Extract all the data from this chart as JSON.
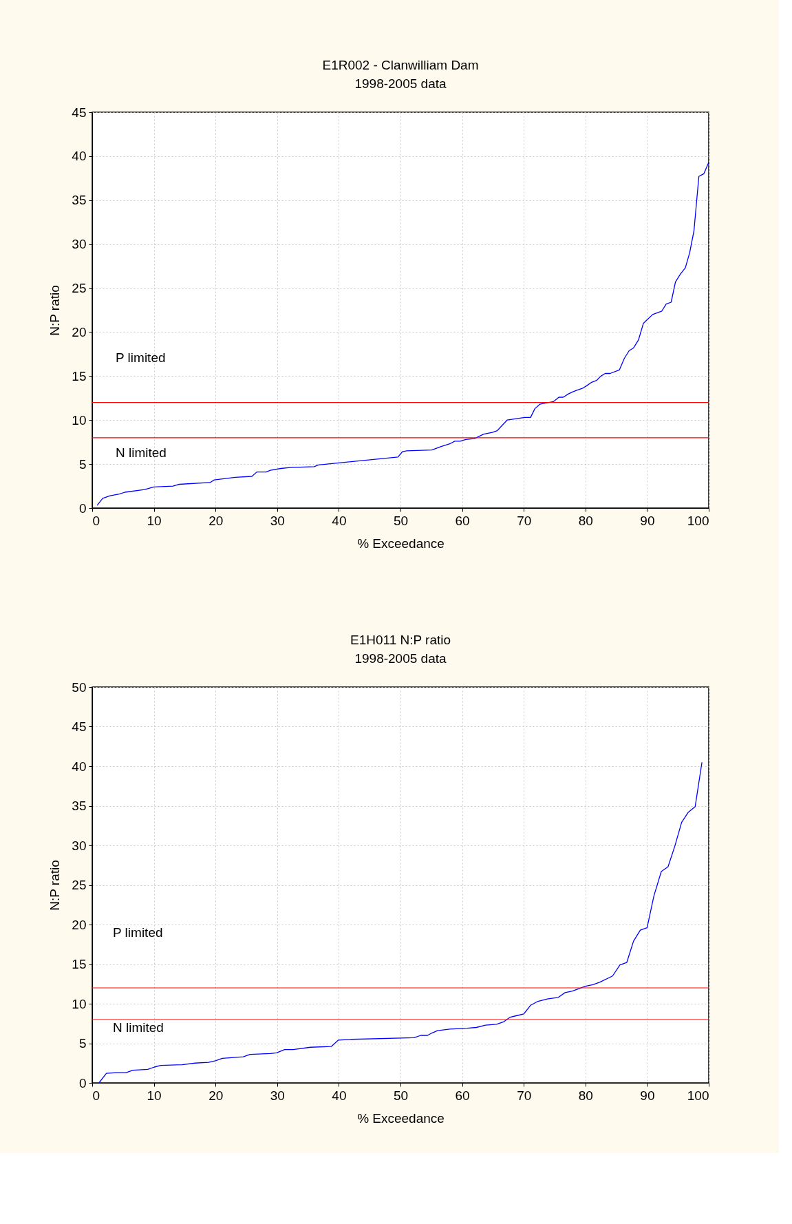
{
  "chart_data": [
    {
      "type": "line",
      "title": "E1R002 - Clanwilliam Dam",
      "subtitle": "1998-2005 data",
      "xlabel": "% Exceedance",
      "ylabel": "N:P ratio",
      "annotations": [
        "P limited",
        "N limited"
      ],
      "series": [
        {
          "color": "#0000ff",
          "x": [
            0.8,
            1.7,
            2.9,
            4.4,
            5.3,
            8.5,
            10.0,
            13.1,
            14.1,
            19.1,
            19.8,
            23.2,
            25.9,
            26.7,
            28.2,
            28.9,
            30.6,
            32.1,
            36.0,
            36.7,
            49.6,
            50.3,
            51.0,
            55.1,
            56.6,
            58.0,
            58.8,
            59.7,
            60.6,
            62.0,
            63.5,
            64.2,
            64.9,
            65.7,
            67.3,
            69.2,
            70.2,
            71.1,
            71.8,
            72.6,
            74.8,
            75.7,
            76.4,
            77.3,
            77.9,
            78.6,
            79.5,
            80.2,
            81.0,
            81.8,
            82.5,
            83.2,
            84.0,
            85.5,
            86.3,
            87.1,
            87.8,
            88.6,
            89.4,
            90.0,
            90.9,
            92.4,
            93.1,
            93.9,
            94.6,
            95.4,
            96.2,
            96.9,
            97.6,
            98.4,
            99.2,
            100.0
          ],
          "values": [
            0.3,
            1.1,
            1.4,
            1.6,
            1.8,
            2.1,
            2.4,
            2.5,
            2.7,
            2.9,
            3.2,
            3.5,
            3.6,
            4.1,
            4.1,
            4.3,
            4.5,
            4.6,
            4.7,
            4.9,
            5.8,
            6.4,
            6.5,
            6.6,
            7.0,
            7.3,
            7.6,
            7.6,
            7.8,
            7.9,
            8.4,
            8.5,
            8.6,
            8.8,
            10.0,
            10.2,
            10.3,
            10.3,
            11.3,
            11.8,
            12.1,
            12.6,
            12.6,
            13.0,
            13.2,
            13.4,
            13.6,
            13.9,
            14.3,
            14.5,
            15.0,
            15.3,
            15.3,
            15.7,
            17.0,
            17.9,
            18.2,
            19.1,
            21.0,
            21.4,
            22.0,
            22.4,
            23.2,
            23.4,
            25.7,
            26.6,
            27.3,
            29.0,
            31.5,
            37.7,
            38.0,
            39.3
          ]
        }
      ],
      "xlim": [
        0,
        100
      ],
      "xticks": [
        0,
        10,
        20,
        30,
        40,
        50,
        60,
        70,
        80,
        90,
        100
      ],
      "ylim": [
        0,
        45
      ],
      "yticks": [
        0,
        5,
        10,
        15,
        20,
        25,
        30,
        35,
        40,
        45
      ],
      "ref_lines": [
        {
          "axis": "y",
          "value": 12,
          "color": "#ff0000"
        },
        {
          "axis": "y",
          "value": 8,
          "color": "#ff0000"
        }
      ],
      "grid": true
    },
    {
      "type": "line",
      "title": "E1H011 N:P ratio",
      "subtitle": "1998-2005 data",
      "xlabel": "% Exceedance",
      "ylabel": "N:P ratio",
      "annotations": [
        "P limited",
        "N limited"
      ],
      "series": [
        {
          "color": "#0000ff",
          "x": [
            1.1,
            2.3,
            4.0,
            5.5,
            6.6,
            9.0,
            10.1,
            11.1,
            14.6,
            16.7,
            18.9,
            20.0,
            21.1,
            24.5,
            25.6,
            28.9,
            29.9,
            31.2,
            32.6,
            35.4,
            38.8,
            39.9,
            42.1,
            52.2,
            53.3,
            54.4,
            55.1,
            56.0,
            58.0,
            60.8,
            62.3,
            63.8,
            65.6,
            66.7,
            67.8,
            68.9,
            70.0,
            71.1,
            72.3,
            73.8,
            75.6,
            76.7,
            77.9,
            80.0,
            81.2,
            82.3,
            84.4,
            85.6,
            86.7,
            87.8,
            88.9,
            90.0,
            91.1,
            92.3,
            93.4,
            94.5,
            95.6,
            96.7,
            97.8,
            98.9
          ],
          "values": [
            0.0,
            1.2,
            1.3,
            1.3,
            1.6,
            1.7,
            2.0,
            2.2,
            2.3,
            2.5,
            2.6,
            2.8,
            3.1,
            3.3,
            3.6,
            3.7,
            3.8,
            4.2,
            4.2,
            4.5,
            4.6,
            5.4,
            5.5,
            5.7,
            6.0,
            6.0,
            6.3,
            6.6,
            6.8,
            6.9,
            7.0,
            7.3,
            7.4,
            7.7,
            8.3,
            8.5,
            8.7,
            9.8,
            10.3,
            10.6,
            10.8,
            11.4,
            11.6,
            12.2,
            12.4,
            12.7,
            13.5,
            14.9,
            15.2,
            17.9,
            19.3,
            19.6,
            23.6,
            26.7,
            27.3,
            29.9,
            32.9,
            34.2,
            34.9,
            40.5
          ]
        }
      ],
      "xlim": [
        0,
        100
      ],
      "xticks": [
        0,
        10,
        20,
        30,
        40,
        50,
        60,
        70,
        80,
        90,
        100
      ],
      "ylim": [
        0,
        50
      ],
      "yticks": [
        0,
        5,
        10,
        15,
        20,
        25,
        30,
        35,
        40,
        45,
        50
      ],
      "ref_lines": [
        {
          "axis": "y",
          "value": 12,
          "color": "#ff0000"
        },
        {
          "axis": "y",
          "value": 8,
          "color": "#ff0000"
        }
      ],
      "grid": true
    }
  ]
}
